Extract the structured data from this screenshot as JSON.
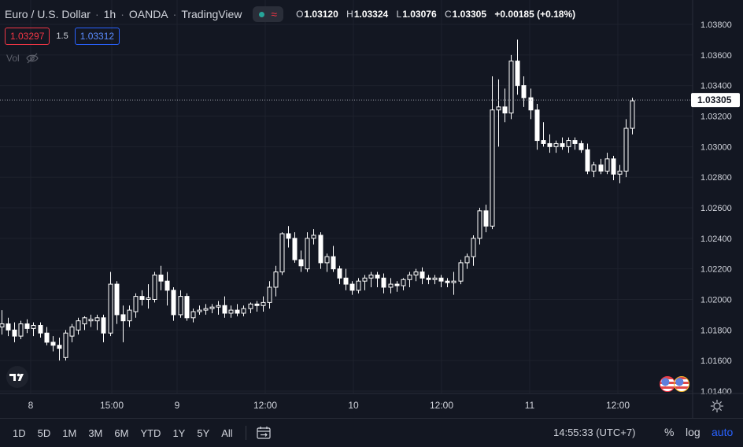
{
  "header": {
    "symbol": "Euro / U.S. Dollar",
    "interval": "1h",
    "broker": "OANDA",
    "source": "TradingView",
    "ohlc": {
      "o_label": "O",
      "o": "1.03120",
      "h_label": "H",
      "h": "1.03324",
      "l_label": "L",
      "l": "1.03076",
      "c_label": "C",
      "c": "1.03305",
      "change": "+0.00185 (+0.18%)"
    }
  },
  "trade": {
    "bid": "1.03297",
    "spread": "1.5",
    "ask": "1.03312"
  },
  "volume": {
    "label": "Vol"
  },
  "colors": {
    "background": "#131722",
    "grid": "#1e222d",
    "candle": "#ffffff",
    "bid": "#f23645",
    "ask": "#2962ff",
    "text": "#d1d4dc"
  },
  "chart_data": {
    "type": "candlestick",
    "y_axis": {
      "min": 1.0138,
      "max": 1.039,
      "ticks": [
        "1.03800",
        "1.03600",
        "1.03400",
        "1.03200",
        "1.03000",
        "1.02800",
        "1.02600",
        "1.02400",
        "1.02200",
        "1.02000",
        "1.01800",
        "1.01600",
        "1.01400"
      ],
      "current_price": "1.03305"
    },
    "x_axis": {
      "labels": [
        "8",
        "15:00",
        "9",
        "12:00",
        "10",
        "12:00",
        "11",
        "12:00"
      ]
    },
    "candles": [
      [
        1.0182,
        1.0193,
        1.0177,
        1.0184
      ],
      [
        1.0184,
        1.0188,
        1.0176,
        1.018
      ],
      [
        1.018,
        1.0185,
        1.0172,
        1.0176
      ],
      [
        1.0176,
        1.0186,
        1.0174,
        1.0184
      ],
      [
        1.0184,
        1.0187,
        1.0178,
        1.0181
      ],
      [
        1.0181,
        1.0185,
        1.0176,
        1.0183
      ],
      [
        1.0183,
        1.0185,
        1.0175,
        1.0178
      ],
      [
        1.0178,
        1.0182,
        1.017,
        1.0172
      ],
      [
        1.0172,
        1.0176,
        1.0166,
        1.017
      ],
      [
        1.017,
        1.0175,
        1.016,
        1.0168
      ],
      [
        1.0162,
        1.018,
        1.016,
        1.0178
      ],
      [
        1.0176,
        1.0184,
        1.0172,
        1.0182
      ],
      [
        1.018,
        1.0188,
        1.0177,
        1.0186
      ],
      [
        1.0184,
        1.0189,
        1.018,
        1.0188
      ],
      [
        1.0186,
        1.019,
        1.0182,
        1.0187
      ],
      [
        1.0186,
        1.019,
        1.018,
        1.0188
      ],
      [
        1.0188,
        1.019,
        1.0172,
        1.0178
      ],
      [
        1.0178,
        1.0218,
        1.0176,
        1.021
      ],
      [
        1.021,
        1.0212,
        1.0184,
        1.019
      ],
      [
        1.019,
        1.0196,
        1.0172,
        1.0186
      ],
      [
        1.0186,
        1.0196,
        1.0182,
        1.0193
      ],
      [
        1.0192,
        1.0204,
        1.0188,
        1.0202
      ],
      [
        1.0202,
        1.0206,
        1.0196,
        1.02
      ],
      [
        1.02,
        1.021,
        1.0194,
        1.0201
      ],
      [
        1.02,
        1.0218,
        1.0198,
        1.0216
      ],
      [
        1.0216,
        1.0222,
        1.0206,
        1.0212
      ],
      [
        1.0212,
        1.0218,
        1.0196,
        1.0206
      ],
      [
        1.0206,
        1.0208,
        1.0186,
        1.019
      ],
      [
        1.019,
        1.0206,
        1.0188,
        1.0202
      ],
      [
        1.0202,
        1.0204,
        1.0186,
        1.0188
      ],
      [
        1.0188,
        1.0194,
        1.0185,
        1.0192
      ],
      [
        1.0192,
        1.0196,
        1.019,
        1.0193
      ],
      [
        1.0193,
        1.0197,
        1.019,
        1.0194
      ],
      [
        1.0194,
        1.0197,
        1.0191,
        1.0195
      ],
      [
        1.0195,
        1.0199,
        1.019,
        1.0196
      ],
      [
        1.0196,
        1.0202,
        1.0188,
        1.0191
      ],
      [
        1.0191,
        1.0196,
        1.0188,
        1.0193
      ],
      [
        1.0193,
        1.0197,
        1.0189,
        1.0191
      ],
      [
        1.0191,
        1.0196,
        1.0189,
        1.0194
      ],
      [
        1.0194,
        1.0198,
        1.0191,
        1.0197
      ],
      [
        1.0197,
        1.0199,
        1.0192,
        1.0196
      ],
      [
        1.0196,
        1.0202,
        1.0192,
        1.0198
      ],
      [
        1.0198,
        1.0212,
        1.0194,
        1.0208
      ],
      [
        1.0208,
        1.0222,
        1.0202,
        1.0218
      ],
      [
        1.0218,
        1.0244,
        1.0216,
        1.0243
      ],
      [
        1.0243,
        1.0248,
        1.0234,
        1.024
      ],
      [
        1.024,
        1.0244,
        1.0224,
        1.0226
      ],
      [
        1.0226,
        1.0232,
        1.0218,
        1.0222
      ],
      [
        1.022,
        1.0244,
        1.0218,
        1.024
      ],
      [
        1.024,
        1.0246,
        1.0236,
        1.0242
      ],
      [
        1.0242,
        1.0244,
        1.022,
        1.0224
      ],
      [
        1.0224,
        1.023,
        1.0218,
        1.0228
      ],
      [
        1.0228,
        1.0235,
        1.0218,
        1.022
      ],
      [
        1.022,
        1.0222,
        1.021,
        1.0214
      ],
      [
        1.0214,
        1.022,
        1.0206,
        1.021
      ],
      [
        1.021,
        1.0212,
        1.0203,
        1.0206
      ],
      [
        1.0206,
        1.0214,
        1.0204,
        1.0212
      ],
      [
        1.0212,
        1.0216,
        1.0206,
        1.0214
      ],
      [
        1.0214,
        1.0218,
        1.0208,
        1.0216
      ],
      [
        1.0216,
        1.0218,
        1.0208,
        1.0214
      ],
      [
        1.0214,
        1.0217,
        1.0204,
        1.0208
      ],
      [
        1.0208,
        1.0214,
        1.0204,
        1.021
      ],
      [
        1.021,
        1.0212,
        1.0205,
        1.0209
      ],
      [
        1.0209,
        1.0214,
        1.0206,
        1.0213
      ],
      [
        1.0213,
        1.0218,
        1.0208,
        1.0216
      ],
      [
        1.0216,
        1.022,
        1.0212,
        1.0218
      ],
      [
        1.0218,
        1.0221,
        1.021,
        1.0214
      ],
      [
        1.0214,
        1.0216,
        1.021,
        1.0213
      ],
      [
        1.0213,
        1.0216,
        1.021,
        1.0214
      ],
      [
        1.0214,
        1.0216,
        1.0208,
        1.0212
      ],
      [
        1.0212,
        1.0214,
        1.0208,
        1.0211
      ],
      [
        1.0211,
        1.0218,
        1.0203,
        1.0212
      ],
      [
        1.0212,
        1.0226,
        1.021,
        1.0224
      ],
      [
        1.0224,
        1.023,
        1.022,
        1.0228
      ],
      [
        1.0228,
        1.0242,
        1.0222,
        1.024
      ],
      [
        1.024,
        1.026,
        1.0236,
        1.0258
      ],
      [
        1.0258,
        1.0262,
        1.0244,
        1.0248
      ],
      [
        1.0248,
        1.0346,
        1.0246,
        1.0324
      ],
      [
        1.0324,
        1.0344,
        1.03,
        1.0326
      ],
      [
        1.0326,
        1.0338,
        1.0316,
        1.0322
      ],
      [
        1.0322,
        1.036,
        1.0318,
        1.0356
      ],
      [
        1.0356,
        1.037,
        1.0334,
        1.034
      ],
      [
        1.034,
        1.0346,
        1.0326,
        1.0332
      ],
      [
        1.0332,
        1.0338,
        1.0318,
        1.0324
      ],
      [
        1.0324,
        1.0328,
        1.0298,
        1.0304
      ],
      [
        1.0304,
        1.0316,
        1.03,
        1.0302
      ],
      [
        1.0302,
        1.0308,
        1.0296,
        1.03
      ],
      [
        1.03,
        1.0304,
        1.0296,
        1.0302
      ],
      [
        1.0302,
        1.0306,
        1.0298,
        1.03
      ],
      [
        1.03,
        1.0306,
        1.0296,
        1.0304
      ],
      [
        1.0304,
        1.0306,
        1.0298,
        1.0302
      ],
      [
        1.0302,
        1.0304,
        1.0296,
        1.0298
      ],
      [
        1.0298,
        1.0302,
        1.0282,
        1.0284
      ],
      [
        1.0284,
        1.029,
        1.028,
        1.0288
      ],
      [
        1.0288,
        1.0292,
        1.0282,
        1.0284
      ],
      [
        1.0284,
        1.0296,
        1.0282,
        1.0292
      ],
      [
        1.0292,
        1.0294,
        1.0278,
        1.0282
      ],
      [
        1.0282,
        1.0288,
        1.0276,
        1.0284
      ],
      [
        1.0284,
        1.0318,
        1.028,
        1.0312
      ],
      [
        1.0312,
        1.0332,
        1.0308,
        1.033
      ]
    ]
  },
  "bottom_bar": {
    "ranges": [
      "1D",
      "5D",
      "1M",
      "3M",
      "6M",
      "YTD",
      "1Y",
      "5Y",
      "All"
    ],
    "clock": "14:55:33 (UTC+7)",
    "percent": "%",
    "log": "log",
    "auto": "auto"
  }
}
